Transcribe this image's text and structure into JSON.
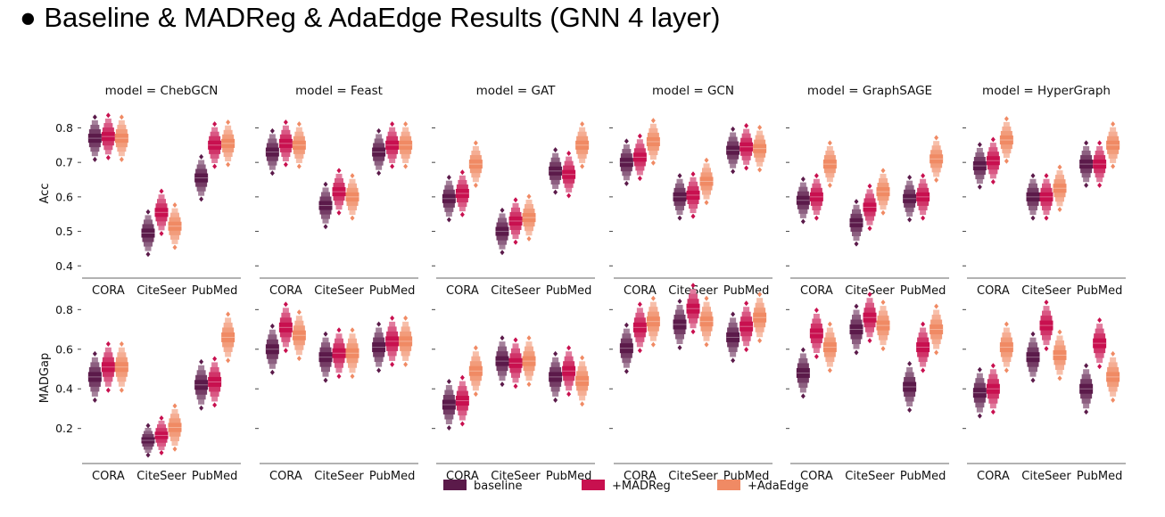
{
  "title": "● Baseline & MADReg & AdaEdge Results (GNN 4 layer)",
  "colors": {
    "baseline": "#5b1a4a",
    "+MADReg": "#c8104f",
    "+AdaEdge": "#f08a64"
  },
  "legend": [
    "baseline",
    "+MADReg",
    "+AdaEdge"
  ],
  "chart_data": {
    "type": "boxen",
    "categories": [
      "CORA",
      "CiteSeer",
      "PubMed"
    ],
    "series_names": [
      "baseline",
      "+MADReg",
      "+AdaEdge"
    ],
    "rows": [
      {
        "metric": "Acc",
        "ylabel": "Acc",
        "ylim": [
          0.38,
          0.84
        ],
        "yticks": [
          0.4,
          0.5,
          0.6,
          0.7,
          0.8
        ],
        "ytick_labels": [
          "0.4",
          "0.5",
          "0.6",
          "0.7",
          "0.8"
        ]
      },
      {
        "metric": "MADGap",
        "ylabel": "MADGap",
        "ylim": [
          0.05,
          0.86
        ],
        "yticks": [
          0.2,
          0.4,
          0.6,
          0.8
        ],
        "ytick_labels": [
          "0.2",
          "0.4",
          "0.6",
          "0.8"
        ]
      }
    ],
    "panels": [
      {
        "model": "model = ChebGCN",
        "Acc": [
          [
            0.77,
            0.775,
            0.77
          ],
          [
            0.495,
            0.555,
            0.515
          ],
          [
            0.655,
            0.75,
            0.755
          ]
        ],
        "MADGap": [
          [
            0.46,
            0.51,
            0.51
          ],
          [
            0.14,
            0.165,
            0.205
          ],
          [
            0.42,
            0.435,
            0.66
          ]
        ]
      },
      {
        "model": "model = Feast",
        "Acc": [
          [
            0.73,
            0.755,
            0.75
          ],
          [
            0.575,
            0.615,
            0.6
          ],
          [
            0.73,
            0.75,
            0.75
          ]
        ],
        "MADGap": [
          [
            0.6,
            0.71,
            0.67
          ],
          [
            0.56,
            0.58,
            0.58
          ],
          [
            0.61,
            0.64,
            0.64
          ]
        ]
      },
      {
        "model": "model = GAT",
        "Acc": [
          [
            0.595,
            0.61,
            0.695
          ],
          [
            0.5,
            0.53,
            0.54
          ],
          [
            0.675,
            0.665,
            0.75
          ]
        ],
        "MADGap": [
          [
            0.32,
            0.34,
            0.49
          ],
          [
            0.54,
            0.53,
            0.54
          ],
          [
            0.46,
            0.49,
            0.44
          ]
        ]
      },
      {
        "model": "model = GCN",
        "Acc": [
          [
            0.7,
            0.715,
            0.76
          ],
          [
            0.6,
            0.605,
            0.645
          ],
          [
            0.735,
            0.745,
            0.74
          ]
        ],
        "MADGap": [
          [
            0.605,
            0.71,
            0.74
          ],
          [
            0.725,
            0.805,
            0.74
          ],
          [
            0.66,
            0.715,
            0.76
          ]
        ]
      },
      {
        "model": "model = GraphSAGE",
        "Acc": [
          [
            0.59,
            0.6,
            0.695
          ],
          [
            0.525,
            0.57,
            0.615
          ],
          [
            0.595,
            0.6,
            0.71
          ]
        ],
        "MADGap": [
          [
            0.48,
            0.68,
            0.61
          ],
          [
            0.7,
            0.76,
            0.72
          ],
          [
            0.41,
            0.61,
            0.7
          ]
        ]
      },
      {
        "model": "model = HyperGraph",
        "Acc": [
          [
            0.69,
            0.705,
            0.765
          ],
          [
            0.6,
            0.6,
            0.625
          ],
          [
            0.695,
            0.695,
            0.75
          ]
        ],
        "MADGap": [
          [
            0.38,
            0.4,
            0.61
          ],
          [
            0.56,
            0.72,
            0.57
          ],
          [
            0.4,
            0.63,
            0.46
          ]
        ]
      }
    ]
  }
}
